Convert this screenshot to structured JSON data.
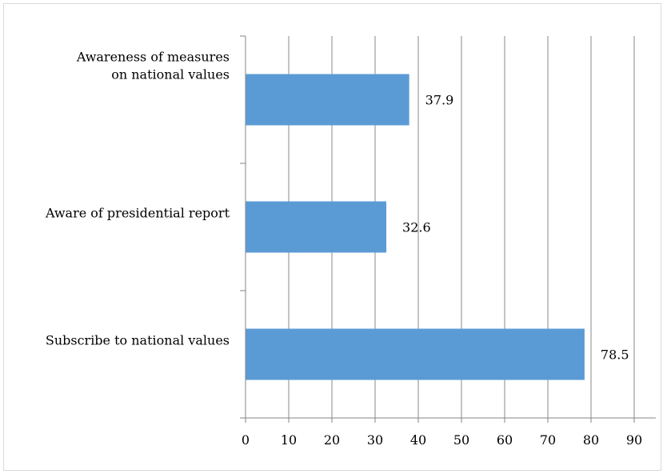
{
  "chart_data": {
    "type": "bar",
    "orientation": "horizontal",
    "categories": [
      "Awareness of measures on national values",
      "Aware of presidential report",
      "Subscribe to national values"
    ],
    "category_label_lines": [
      [
        "Awareness of measures",
        "on national values"
      ],
      [
        "Aware of presidential report"
      ],
      [
        "Subscribe to national values"
      ]
    ],
    "values": [
      37.9,
      32.6,
      78.5
    ],
    "value_labels": [
      "37.9",
      "32.6",
      "78.5"
    ],
    "xticks": [
      "0",
      "10",
      "20",
      "30",
      "40",
      "50",
      "60",
      "70",
      "80",
      "90"
    ],
    "xlim": [
      0,
      95
    ],
    "title": "",
    "xlabel": "",
    "ylabel": "",
    "grid": "vertical",
    "legend": "none",
    "bar_color": "#5b9bd5",
    "grid_color": "#888888",
    "axis_color": "#868686"
  }
}
